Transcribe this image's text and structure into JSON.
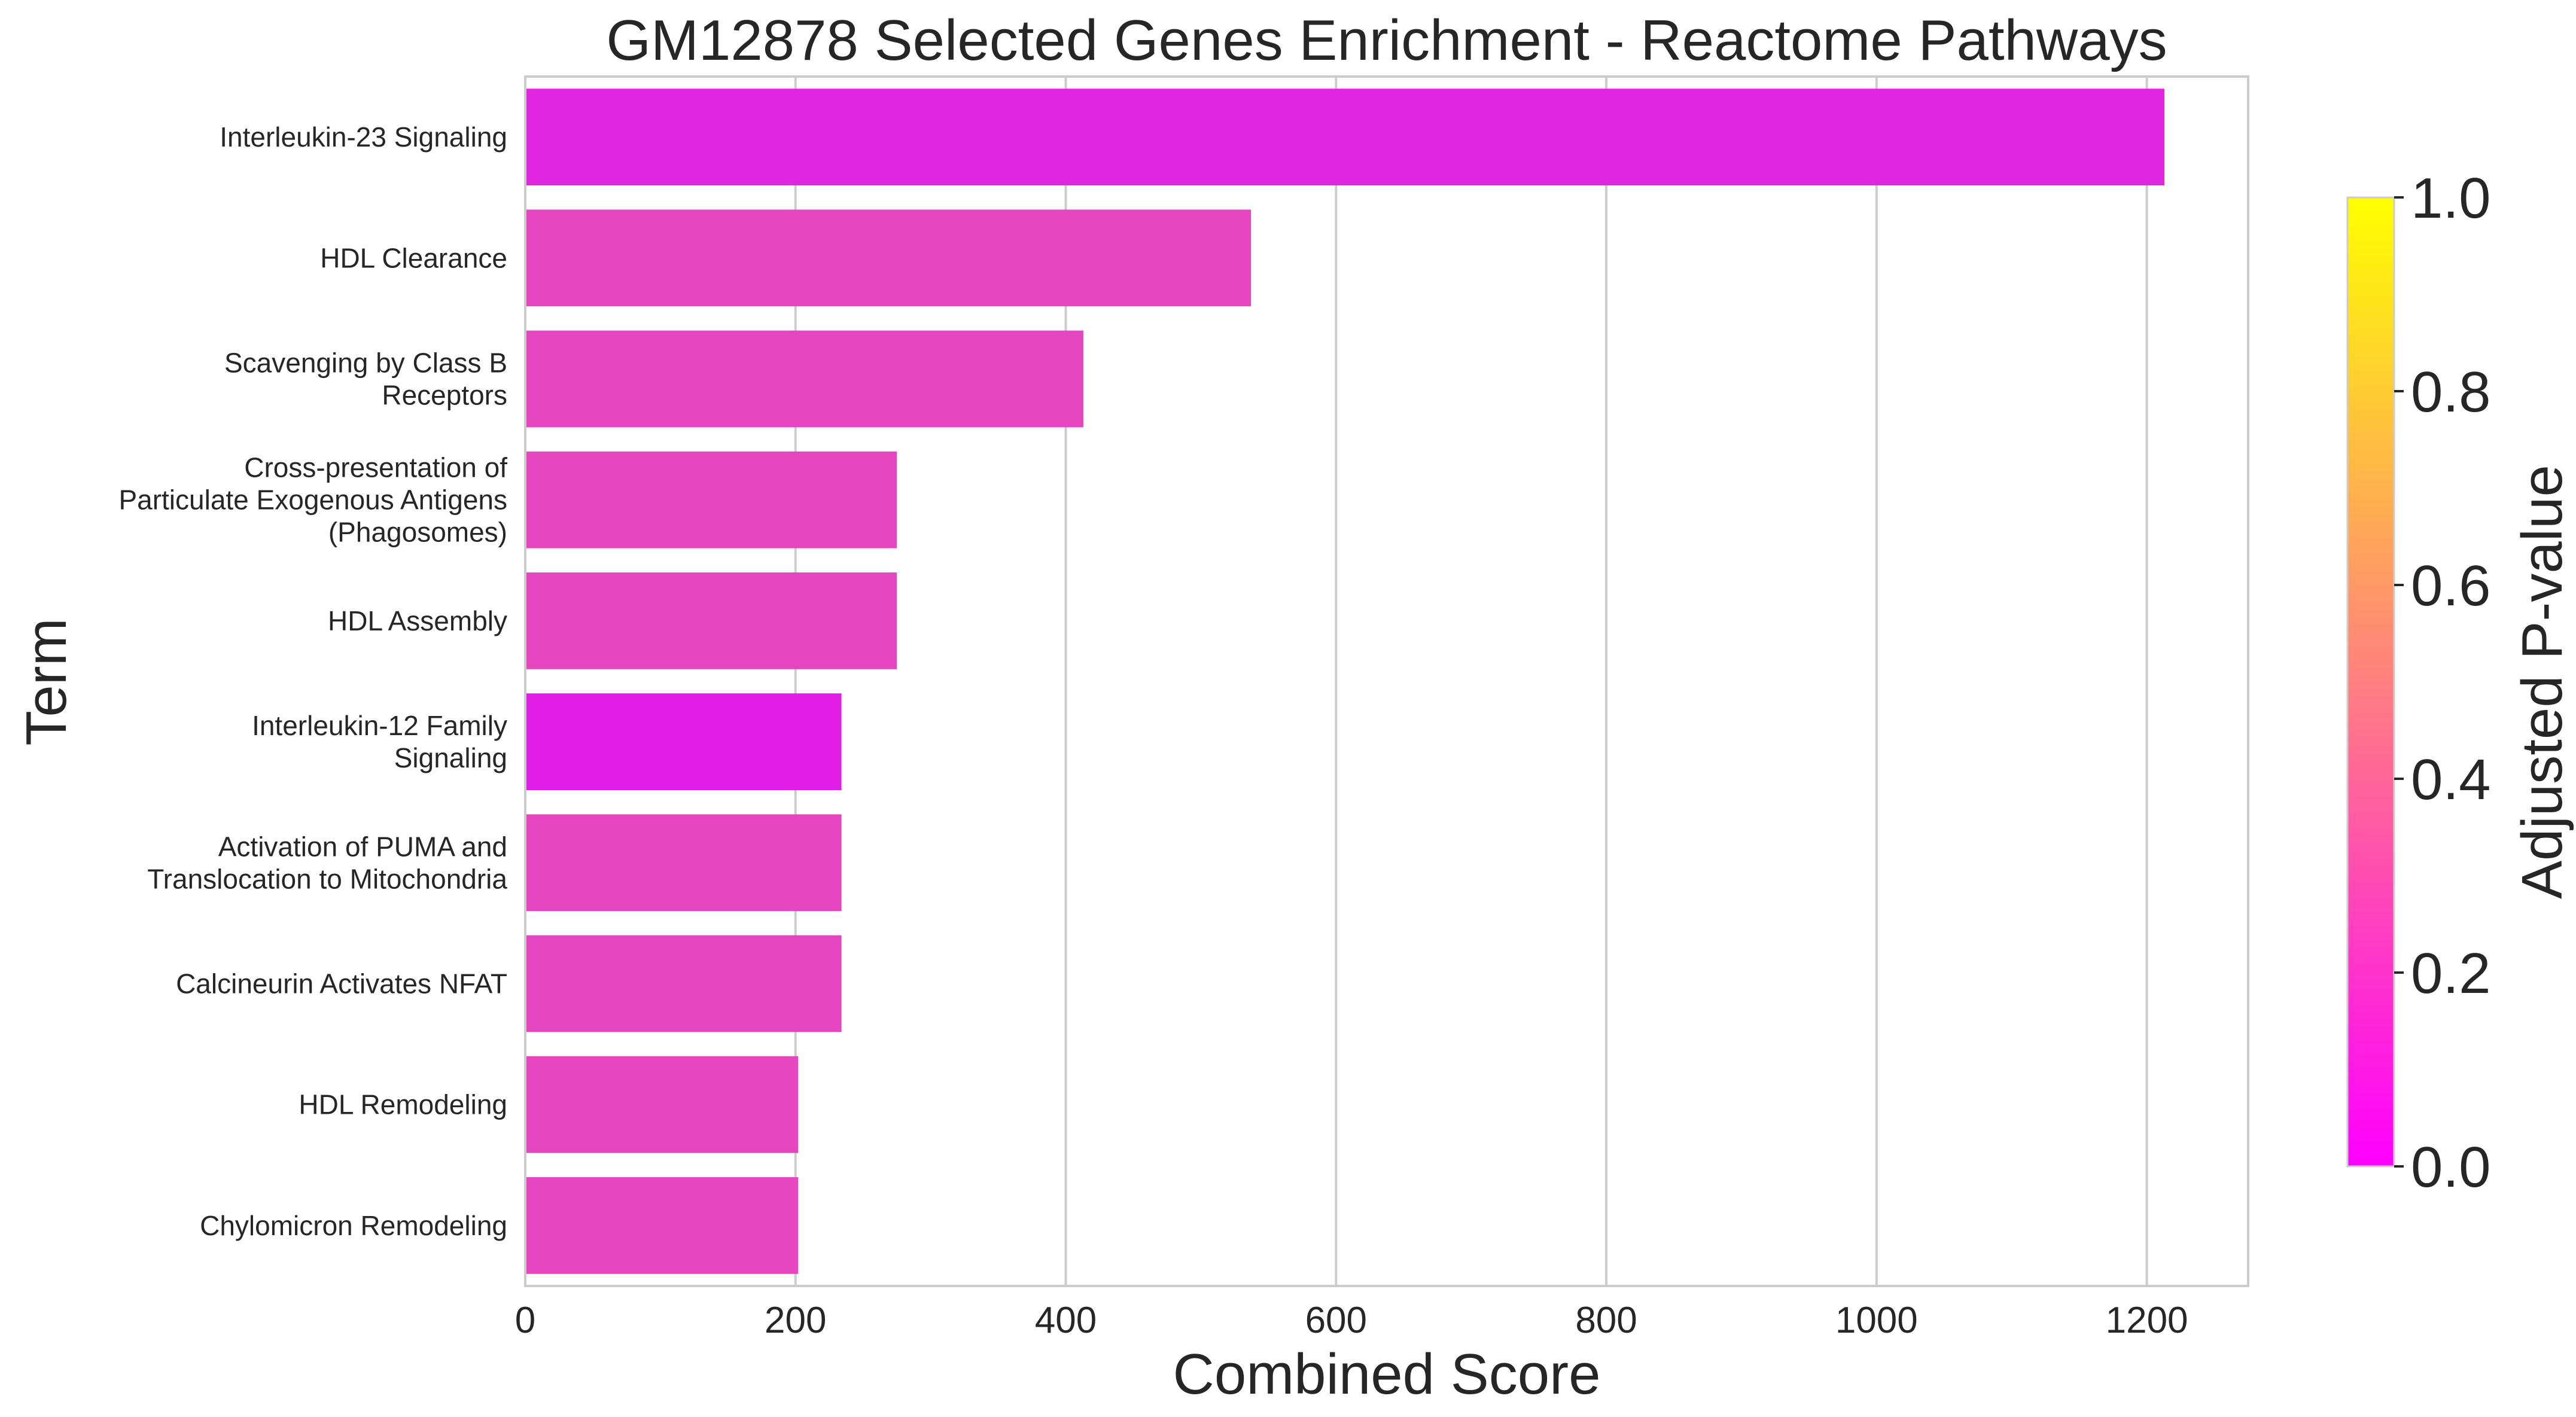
{
  "chart_data": {
    "type": "bar",
    "orientation": "horizontal",
    "title": "GM12878 Selected Genes Enrichment - Reactome Pathways",
    "xlabel": "Combined Score",
    "ylabel": "Term",
    "xlim": [
      0,
      1275
    ],
    "xticks": [
      0,
      200,
      400,
      600,
      800,
      1000,
      1200
    ],
    "grid": "vertical",
    "categories": [
      [
        "Interleukin-23 Signaling"
      ],
      [
        "HDL Clearance"
      ],
      [
        "Scavenging by Class B",
        "Receptors"
      ],
      [
        "Cross-presentation of",
        "Particulate Exogenous Antigens",
        "(Phagosomes)"
      ],
      [
        "HDL Assembly"
      ],
      [
        "Interleukin-12 Family",
        "Signaling"
      ],
      [
        "Activation of PUMA and",
        "Translocation to Mitochondria"
      ],
      [
        "Calcineurin Activates NFAT"
      ],
      [
        "HDL Remodeling"
      ],
      [
        "Chylomicron Remodeling"
      ]
    ],
    "values": [
      1213,
      537,
      413,
      275,
      275,
      234,
      234,
      234,
      202,
      202
    ],
    "adjusted_p_values": [
      0.06,
      0.18,
      0.18,
      0.18,
      0.18,
      0.06,
      0.18,
      0.18,
      0.18,
      0.18
    ],
    "bar_colors": [
      "#e026e0",
      "#e545bf",
      "#e545bf",
      "#e545bf",
      "#e545bf",
      "#e01ee6",
      "#e545bf",
      "#e545bf",
      "#e545bf",
      "#e545bf"
    ],
    "colorbar": {
      "label": "Adjusted P-value",
      "colormap": "spring",
      "range": [
        0.0,
        1.0
      ],
      "ticks": [
        "0.0",
        "0.2",
        "0.4",
        "0.6",
        "0.8",
        "1.0"
      ],
      "color_low": "#ff00ff",
      "color_high": "#ffff00"
    }
  }
}
